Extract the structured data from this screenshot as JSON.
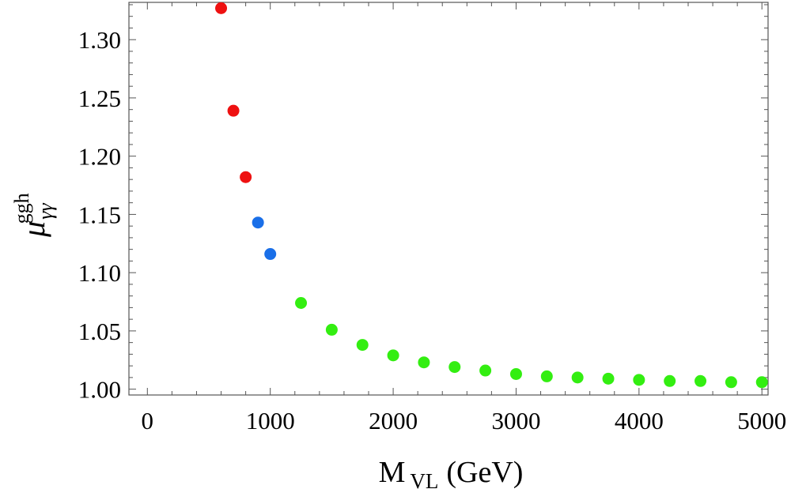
{
  "chart_data": {
    "type": "scatter",
    "title": "",
    "xlabel": {
      "main": "M",
      "subscript": "VL",
      "unit": "(GeV)"
    },
    "ylabel": {
      "main": "μ",
      "subscript": "γγ",
      "superscript": "ggh"
    },
    "xlim": [
      -150,
      5050
    ],
    "ylim": [
      0.995,
      1.332
    ],
    "x_ticks": [
      0,
      1000,
      2000,
      3000,
      4000,
      5000
    ],
    "x_tick_labels": [
      "0",
      "1000",
      "2000",
      "3000",
      "4000",
      "5000"
    ],
    "y_ticks": [
      1.0,
      1.05,
      1.1,
      1.15,
      1.2,
      1.25,
      1.3
    ],
    "y_tick_labels": [
      "1.00",
      "1.05",
      "1.10",
      "1.15",
      "1.20",
      "1.25",
      "1.30"
    ],
    "grid": false,
    "frame": true,
    "series": [
      {
        "name": "red",
        "color": "#ee1111",
        "x": [
          600,
          700,
          800
        ],
        "y": [
          1.327,
          1.239,
          1.182
        ]
      },
      {
        "name": "blue",
        "color": "#1a6fe8",
        "x": [
          900,
          1000
        ],
        "y": [
          1.143,
          1.116
        ]
      },
      {
        "name": "green",
        "color": "#33ee11",
        "x": [
          1250,
          1500,
          1750,
          2000,
          2250,
          2500,
          2750,
          3000,
          3250,
          3500,
          3750,
          4000,
          4250,
          4500,
          4750,
          5000
        ],
        "y": [
          1.074,
          1.051,
          1.038,
          1.029,
          1.023,
          1.019,
          1.016,
          1.013,
          1.011,
          1.01,
          1.009,
          1.008,
          1.007,
          1.007,
          1.006,
          1.006
        ]
      }
    ]
  }
}
